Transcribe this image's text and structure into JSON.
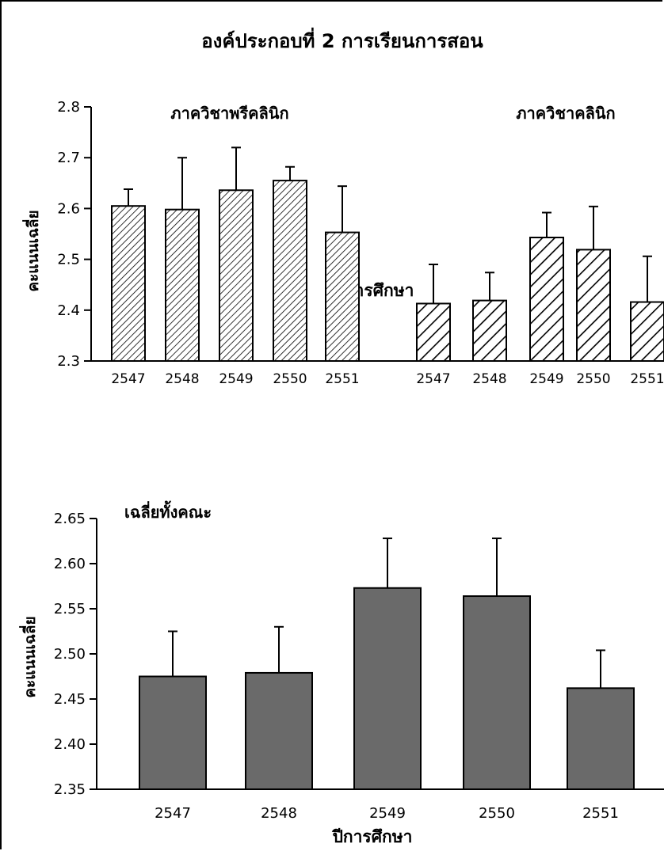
{
  "figure_title": "องค์ประกอบที่ 2 การเรียนการสอน",
  "chart_data": [
    {
      "type": "bar",
      "title": "",
      "groups": [
        {
          "label": "ภาควิชาพรีคลินิก",
          "categories": [
            "2547",
            "2548",
            "2549",
            "2550",
            "2551"
          ],
          "values": [
            2.605,
            2.598,
            2.636,
            2.655,
            2.553
          ],
          "error_upper": [
            2.638,
            2.7,
            2.72,
            2.682,
            2.644
          ],
          "pattern": "dense-diagonal-hatch"
        },
        {
          "label": "ภาควิชาคลินิก",
          "categories": [
            "2547",
            "2548",
            "2549",
            "2550",
            "2551"
          ],
          "values": [
            2.413,
            2.419,
            2.543,
            2.519,
            2.416
          ],
          "error_upper": [
            2.49,
            2.474,
            2.592,
            2.604,
            2.506
          ],
          "pattern": "wide-diagonal-hatch"
        }
      ],
      "xlabel": "ปีการศึกษา",
      "ylabel": "คะแนนเฉลี่ย",
      "ylim": [
        2.3,
        2.8
      ],
      "yticks": [
        "2.3",
        "2.4",
        "2.5",
        "2.6",
        "2.7",
        "2.8"
      ],
      "grid": false,
      "colors": {
        "bar_fill": "#ffffff",
        "hatch": "#000000",
        "edge": "#000000"
      }
    },
    {
      "type": "bar",
      "title": "เฉลี่ยทั้งคณะ",
      "categories": [
        "2547",
        "2548",
        "2549",
        "2550",
        "2551"
      ],
      "values": [
        2.475,
        2.479,
        2.573,
        2.564,
        2.462
      ],
      "error_upper": [
        2.525,
        2.53,
        2.628,
        2.628,
        2.504
      ],
      "xlabel": "ปีการศึกษา",
      "ylabel": "คะแนนเฉลี่ย",
      "ylim": [
        2.35,
        2.65
      ],
      "yticks": [
        "2.35",
        "2.40",
        "2.45",
        "2.50",
        "2.55",
        "2.60",
        "2.65"
      ],
      "grid": false,
      "colors": {
        "bar_fill": "#6a6a6a",
        "edge": "#000000"
      }
    }
  ]
}
